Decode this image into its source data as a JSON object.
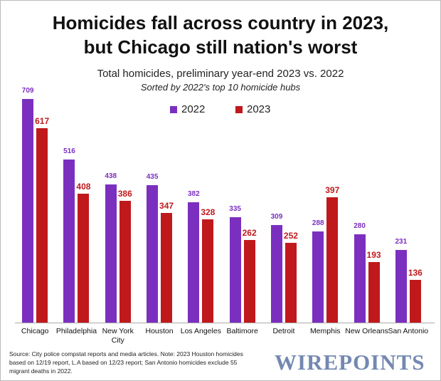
{
  "chart_data": {
    "type": "bar",
    "title": [
      "Homicides fall across country in 2023,",
      "but Chicago still nation's worst"
    ],
    "subtitle": "Total homicides, preliminary year-end 2023 vs. 2022",
    "note": "Sorted by 2022's top 10 homicide hubs",
    "categories": [
      "Chicago",
      "Philadelphia",
      "New York City",
      "Houston",
      "Los Angeles",
      "Baltimore",
      "Detroit",
      "Memphis",
      "New Orleans",
      "San Antonio"
    ],
    "series": [
      {
        "name": "2022",
        "color": "#7b2fbf",
        "values": [
          709,
          516,
          438,
          435,
          382,
          335,
          309,
          288,
          280,
          231
        ]
      },
      {
        "name": "2023",
        "color": "#c0191c",
        "values": [
          617,
          408,
          386,
          347,
          328,
          262,
          252,
          397,
          193,
          136
        ]
      }
    ],
    "source": "Source: City police compstat reports and media articles. Note: 2023 Houston homicides based on 12/19 report, L.A based on 12/23 report; San Antonio homicides exclude 55 migrant deaths in 2022.",
    "logo": "WIREPOINTS"
  }
}
